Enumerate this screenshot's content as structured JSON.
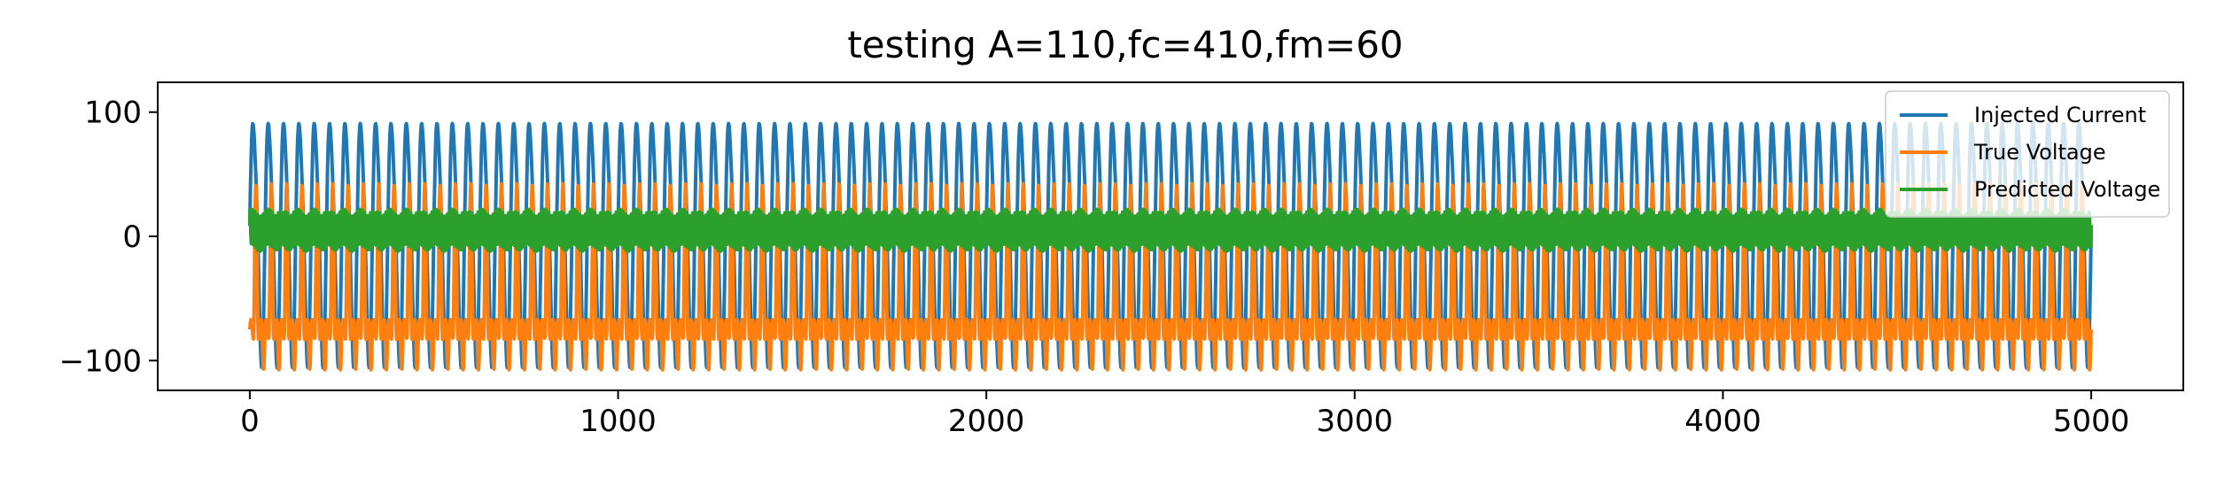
{
  "chart_data": {
    "type": "line",
    "title": "testing A=110,fc=410,fm=60",
    "xlabel": "",
    "ylabel": "",
    "xlim": [
      -250,
      5250
    ],
    "ylim": [
      -124,
      124
    ],
    "x_ticks": [
      0,
      1000,
      2000,
      3000,
      4000,
      5000
    ],
    "y_ticks": [
      -100,
      0,
      100
    ],
    "x_tick_labels": [
      "0",
      "1000",
      "2000",
      "3000",
      "4000",
      "5000"
    ],
    "y_tick_labels": [
      "−100",
      "0",
      "100"
    ],
    "grid": false,
    "legend_position": "top-right",
    "x_range": [
      0,
      5000
    ],
    "oscillation_count": 120,
    "series": [
      {
        "name": "Injected Current",
        "color": "#1f77b4",
        "amplitude": 110,
        "approx_range": [
          -110,
          110
        ]
      },
      {
        "name": "True Voltage",
        "color": "#ff7f0e",
        "approx_range": [
          -110,
          40
        ],
        "typical_baseline": -75
      },
      {
        "name": "Predicted Voltage",
        "color": "#2ca02c",
        "approx_range": [
          -12,
          22
        ]
      }
    ]
  }
}
